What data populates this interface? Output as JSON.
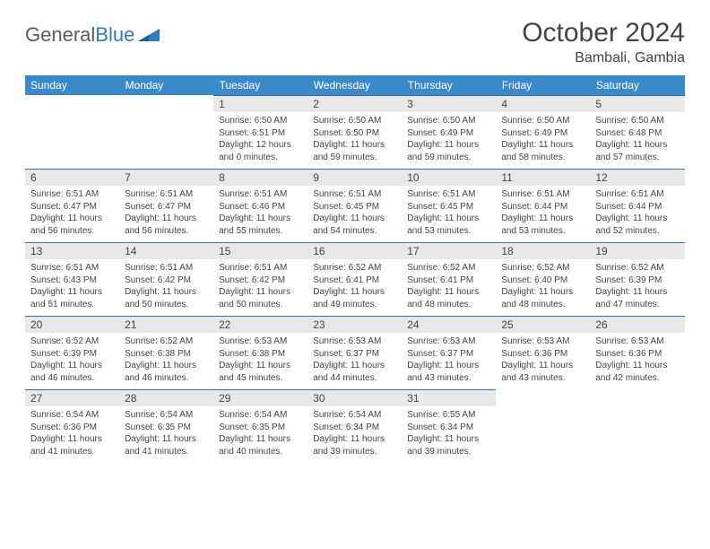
{
  "logo": {
    "part1": "General",
    "part2": "Blue",
    "triangle_color": "#2f7bbf"
  },
  "title": "October 2024",
  "location": "Bambali, Gambia",
  "weekdays": [
    "Sunday",
    "Monday",
    "Tuesday",
    "Wednesday",
    "Thursday",
    "Friday",
    "Saturday"
  ],
  "header_bg": "#3b89c9",
  "daynum_bg": "#e8e8e8",
  "daynum_border": "#2f6fa8",
  "cells": [
    [
      null,
      null,
      {
        "n": "1",
        "sr": "6:50 AM",
        "ss": "6:51 PM",
        "dl": "12 hours and 0 minutes."
      },
      {
        "n": "2",
        "sr": "6:50 AM",
        "ss": "6:50 PM",
        "dl": "11 hours and 59 minutes."
      },
      {
        "n": "3",
        "sr": "6:50 AM",
        "ss": "6:49 PM",
        "dl": "11 hours and 59 minutes."
      },
      {
        "n": "4",
        "sr": "6:50 AM",
        "ss": "6:49 PM",
        "dl": "11 hours and 58 minutes."
      },
      {
        "n": "5",
        "sr": "6:50 AM",
        "ss": "6:48 PM",
        "dl": "11 hours and 57 minutes."
      }
    ],
    [
      {
        "n": "6",
        "sr": "6:51 AM",
        "ss": "6:47 PM",
        "dl": "11 hours and 56 minutes."
      },
      {
        "n": "7",
        "sr": "6:51 AM",
        "ss": "6:47 PM",
        "dl": "11 hours and 56 minutes."
      },
      {
        "n": "8",
        "sr": "6:51 AM",
        "ss": "6:46 PM",
        "dl": "11 hours and 55 minutes."
      },
      {
        "n": "9",
        "sr": "6:51 AM",
        "ss": "6:45 PM",
        "dl": "11 hours and 54 minutes."
      },
      {
        "n": "10",
        "sr": "6:51 AM",
        "ss": "6:45 PM",
        "dl": "11 hours and 53 minutes."
      },
      {
        "n": "11",
        "sr": "6:51 AM",
        "ss": "6:44 PM",
        "dl": "11 hours and 53 minutes."
      },
      {
        "n": "12",
        "sr": "6:51 AM",
        "ss": "6:44 PM",
        "dl": "11 hours and 52 minutes."
      }
    ],
    [
      {
        "n": "13",
        "sr": "6:51 AM",
        "ss": "6:43 PM",
        "dl": "11 hours and 51 minutes."
      },
      {
        "n": "14",
        "sr": "6:51 AM",
        "ss": "6:42 PM",
        "dl": "11 hours and 50 minutes."
      },
      {
        "n": "15",
        "sr": "6:51 AM",
        "ss": "6:42 PM",
        "dl": "11 hours and 50 minutes."
      },
      {
        "n": "16",
        "sr": "6:52 AM",
        "ss": "6:41 PM",
        "dl": "11 hours and 49 minutes."
      },
      {
        "n": "17",
        "sr": "6:52 AM",
        "ss": "6:41 PM",
        "dl": "11 hours and 48 minutes."
      },
      {
        "n": "18",
        "sr": "6:52 AM",
        "ss": "6:40 PM",
        "dl": "11 hours and 48 minutes."
      },
      {
        "n": "19",
        "sr": "6:52 AM",
        "ss": "6:39 PM",
        "dl": "11 hours and 47 minutes."
      }
    ],
    [
      {
        "n": "20",
        "sr": "6:52 AM",
        "ss": "6:39 PM",
        "dl": "11 hours and 46 minutes."
      },
      {
        "n": "21",
        "sr": "6:52 AM",
        "ss": "6:38 PM",
        "dl": "11 hours and 46 minutes."
      },
      {
        "n": "22",
        "sr": "6:53 AM",
        "ss": "6:38 PM",
        "dl": "11 hours and 45 minutes."
      },
      {
        "n": "23",
        "sr": "6:53 AM",
        "ss": "6:37 PM",
        "dl": "11 hours and 44 minutes."
      },
      {
        "n": "24",
        "sr": "6:53 AM",
        "ss": "6:37 PM",
        "dl": "11 hours and 43 minutes."
      },
      {
        "n": "25",
        "sr": "6:53 AM",
        "ss": "6:36 PM",
        "dl": "11 hours and 43 minutes."
      },
      {
        "n": "26",
        "sr": "6:53 AM",
        "ss": "6:36 PM",
        "dl": "11 hours and 42 minutes."
      }
    ],
    [
      {
        "n": "27",
        "sr": "6:54 AM",
        "ss": "6:36 PM",
        "dl": "11 hours and 41 minutes."
      },
      {
        "n": "28",
        "sr": "6:54 AM",
        "ss": "6:35 PM",
        "dl": "11 hours and 41 minutes."
      },
      {
        "n": "29",
        "sr": "6:54 AM",
        "ss": "6:35 PM",
        "dl": "11 hours and 40 minutes."
      },
      {
        "n": "30",
        "sr": "6:54 AM",
        "ss": "6:34 PM",
        "dl": "11 hours and 39 minutes."
      },
      {
        "n": "31",
        "sr": "6:55 AM",
        "ss": "6:34 PM",
        "dl": "11 hours and 39 minutes."
      },
      null,
      null
    ]
  ]
}
